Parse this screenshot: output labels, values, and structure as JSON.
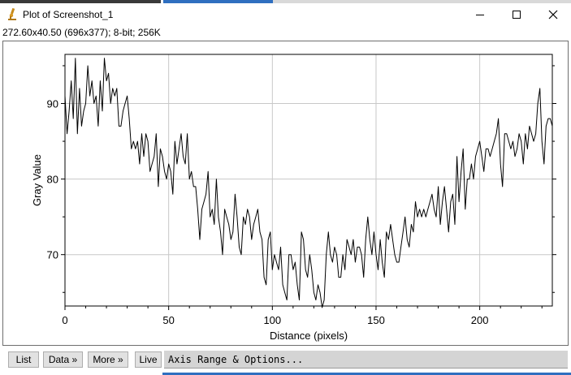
{
  "window": {
    "title": "Plot of Screenshot_1",
    "info": "272.60x40.50   (696x377); 8-bit; 256K"
  },
  "buttons": {
    "list": "List",
    "data": "Data »",
    "more": "More »",
    "live": "Live"
  },
  "axis_options_label": "Axis Range & Options...",
  "chart_data": {
    "type": "line",
    "xlabel": "Distance (pixels)",
    "ylabel": "Gray Value",
    "xlim": [
      0,
      235
    ],
    "ylim": [
      63.2,
      96.5
    ],
    "xticks": [
      0,
      50,
      100,
      150,
      200
    ],
    "yticks": [
      70,
      80,
      90
    ],
    "grid": true,
    "series": [
      {
        "color": "#000000",
        "x": [
          0,
          1,
          2,
          3,
          4,
          5,
          6,
          7,
          8,
          9,
          10,
          11,
          12,
          13,
          14,
          15,
          16,
          17,
          18,
          19,
          20,
          21,
          22,
          23,
          24,
          25,
          26,
          27,
          28,
          29,
          30,
          31,
          32,
          33,
          34,
          35,
          36,
          37,
          38,
          39,
          40,
          41,
          42,
          43,
          44,
          45,
          46,
          47,
          48,
          49,
          50,
          51,
          52,
          53,
          54,
          55,
          56,
          57,
          58,
          59,
          60,
          61,
          62,
          63,
          64,
          65,
          66,
          67,
          68,
          69,
          70,
          71,
          72,
          73,
          74,
          75,
          76,
          77,
          78,
          79,
          80,
          81,
          82,
          83,
          84,
          85,
          86,
          87,
          88,
          89,
          90,
          91,
          92,
          93,
          94,
          95,
          96,
          97,
          98,
          99,
          100,
          101,
          102,
          103,
          104,
          105,
          106,
          107,
          108,
          109,
          110,
          111,
          112,
          113,
          114,
          115,
          116,
          117,
          118,
          119,
          120,
          121,
          122,
          123,
          124,
          125,
          126,
          127,
          128,
          129,
          130,
          131,
          132,
          133,
          134,
          135,
          136,
          137,
          138,
          139,
          140,
          141,
          142,
          143,
          144,
          145,
          146,
          147,
          148,
          149,
          150,
          151,
          152,
          153,
          154,
          155,
          156,
          157,
          158,
          159,
          160,
          161,
          162,
          163,
          164,
          165,
          166,
          167,
          168,
          169,
          170,
          171,
          172,
          173,
          174,
          175,
          176,
          177,
          178,
          179,
          180,
          181,
          182,
          183,
          184,
          185,
          186,
          187,
          188,
          189,
          190,
          191,
          192,
          193,
          194,
          195,
          196,
          197,
          198,
          199,
          200,
          201,
          202,
          203,
          204,
          205,
          206,
          207,
          208,
          209,
          210,
          211,
          212,
          213,
          214,
          215,
          216,
          217,
          218,
          219,
          220,
          221,
          222,
          223,
          224,
          225,
          226,
          227,
          228,
          229,
          230,
          231,
          232,
          233,
          234,
          235
        ],
        "y": [
          91,
          86,
          89,
          93,
          88,
          96,
          86,
          92,
          87,
          89,
          90,
          95,
          91,
          93,
          90,
          91,
          87,
          93,
          89,
          96,
          93,
          94,
          90,
          92,
          91,
          92,
          87,
          87,
          89,
          90,
          91,
          88,
          84,
          85,
          84,
          85,
          82,
          86,
          83,
          86,
          85,
          81,
          82,
          83,
          86,
          79,
          84,
          83,
          81,
          80,
          82,
          81,
          78,
          85,
          82,
          84,
          86,
          83,
          82,
          86,
          80,
          81,
          79,
          79,
          76,
          72,
          76,
          77,
          78,
          81,
          75,
          76,
          74,
          80,
          75,
          73,
          70,
          76,
          75,
          74,
          72,
          73,
          78,
          75,
          71,
          70,
          75,
          74,
          76,
          75,
          72,
          74,
          75,
          76,
          73,
          72,
          67,
          66,
          72,
          73,
          68,
          70,
          69,
          68,
          71,
          66,
          65,
          64,
          70,
          70,
          68,
          69,
          66,
          64,
          73,
          72,
          68,
          67,
          70,
          68,
          65,
          64,
          66,
          65,
          63,
          64,
          70,
          73,
          70,
          69,
          71,
          70,
          67,
          67,
          70,
          68,
          72,
          71,
          70,
          72,
          69,
          71,
          71,
          70,
          67,
          72,
          75,
          72,
          70,
          73,
          70,
          68,
          72,
          69,
          67,
          73,
          72,
          74,
          72,
          70,
          69,
          69,
          71,
          73,
          75,
          72,
          71,
          74,
          73,
          77,
          75,
          76,
          75,
          76,
          75,
          76,
          77,
          78,
          76,
          75,
          79,
          74,
          77,
          79,
          76,
          73,
          77,
          78,
          74,
          83,
          77,
          81,
          84,
          76,
          80,
          80,
          82,
          80,
          83,
          84,
          85,
          83,
          81,
          84,
          84,
          83,
          84,
          85,
          86,
          88,
          82,
          79,
          86,
          86,
          85,
          84,
          85,
          83,
          84,
          86,
          85,
          82,
          86,
          84,
          87,
          86,
          85,
          86,
          90,
          92,
          85,
          82,
          87,
          88,
          88,
          87
        ]
      }
    ]
  }
}
